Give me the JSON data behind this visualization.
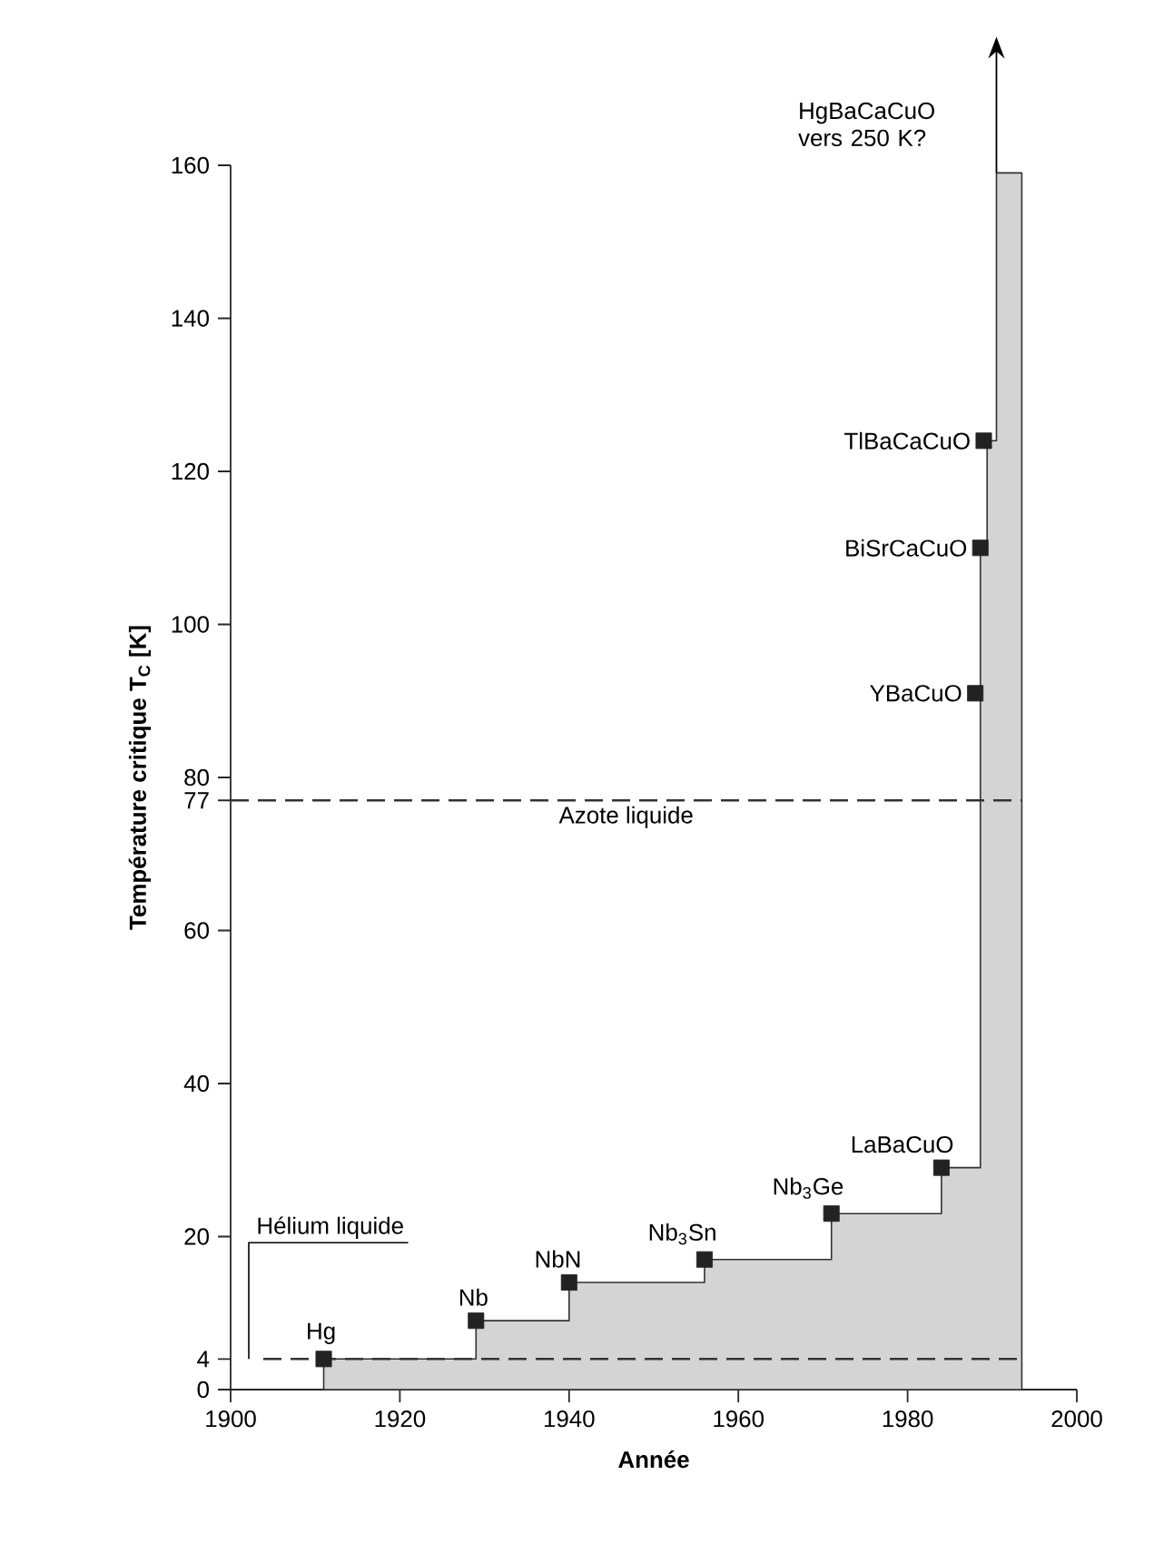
{
  "chart_data": {
    "type": "area",
    "xlabel": "Année",
    "ylabel": "**Température critique T$_{C}$ [K]**",
    "xlim": [
      1900,
      2000
    ],
    "xticks": [
      1900,
      1920,
      1940,
      1960,
      1980,
      2000
    ],
    "ylim": [
      0,
      160
    ],
    "yticks": [
      0,
      4,
      20,
      40,
      60,
      77,
      80,
      100,
      120,
      140,
      160
    ],
    "grid": false,
    "series": [
      {
        "color": "#d4d4d4",
        "x": [
          1911,
          1929,
          1929,
          1940,
          1940,
          1956,
          1956,
          1971,
          1971,
          1984,
          1984,
          1988.6,
          1988.6,
          1989.4,
          1989.4,
          1990.5,
          1990.5,
          1993.5
        ],
        "values": [
          4,
          4,
          9,
          9,
          14,
          14,
          17,
          17,
          23,
          23,
          29,
          29,
          110,
          110,
          124,
          124,
          159,
          159
        ]
      },
      {
        "type": "scatter",
        "marker": "square",
        "color": "#222222",
        "x": [
          1911,
          1929,
          1940,
          1956,
          1971,
          1984,
          1988,
          1988.6,
          1989
        ],
        "values": [
          4,
          9,
          14,
          17,
          23,
          29,
          91,
          110,
          124
        ]
      }
    ],
    "ref_lines": [
      {
        "axis": "y",
        "value": 77,
        "label": "Azote liquide",
        "line_style": "dashed",
        "color": "#333333"
      },
      {
        "axis": "y",
        "value": 4,
        "label": "Hélium liquide",
        "line_style": "dashed",
        "color": "#333333"
      }
    ],
    "annotations": [
      {
        "text": "Hg",
        "x": 1911,
        "y": 4
      },
      {
        "text": "Nb",
        "x": 1929,
        "y": 9
      },
      {
        "text": "NbN",
        "x": 1940,
        "y": 14
      },
      {
        "text": "Nb$_{3}$Sn",
        "x": 1956,
        "y": 17
      },
      {
        "text": "Nb$_{3}$Ge",
        "x": 1971,
        "y": 23
      },
      {
        "text": "LaBaCuO",
        "x": 1984,
        "y": 29
      },
      {
        "text": "YBaCuO",
        "x": 1988,
        "y": 91
      },
      {
        "text": "BiSrCaCuO",
        "x": 1988.6,
        "y": 110
      },
      {
        "text": "TlBaCaCuO",
        "x": 1989,
        "y": 124
      },
      "HgBaCaCuO vers 250 K?"
    ]
  }
}
